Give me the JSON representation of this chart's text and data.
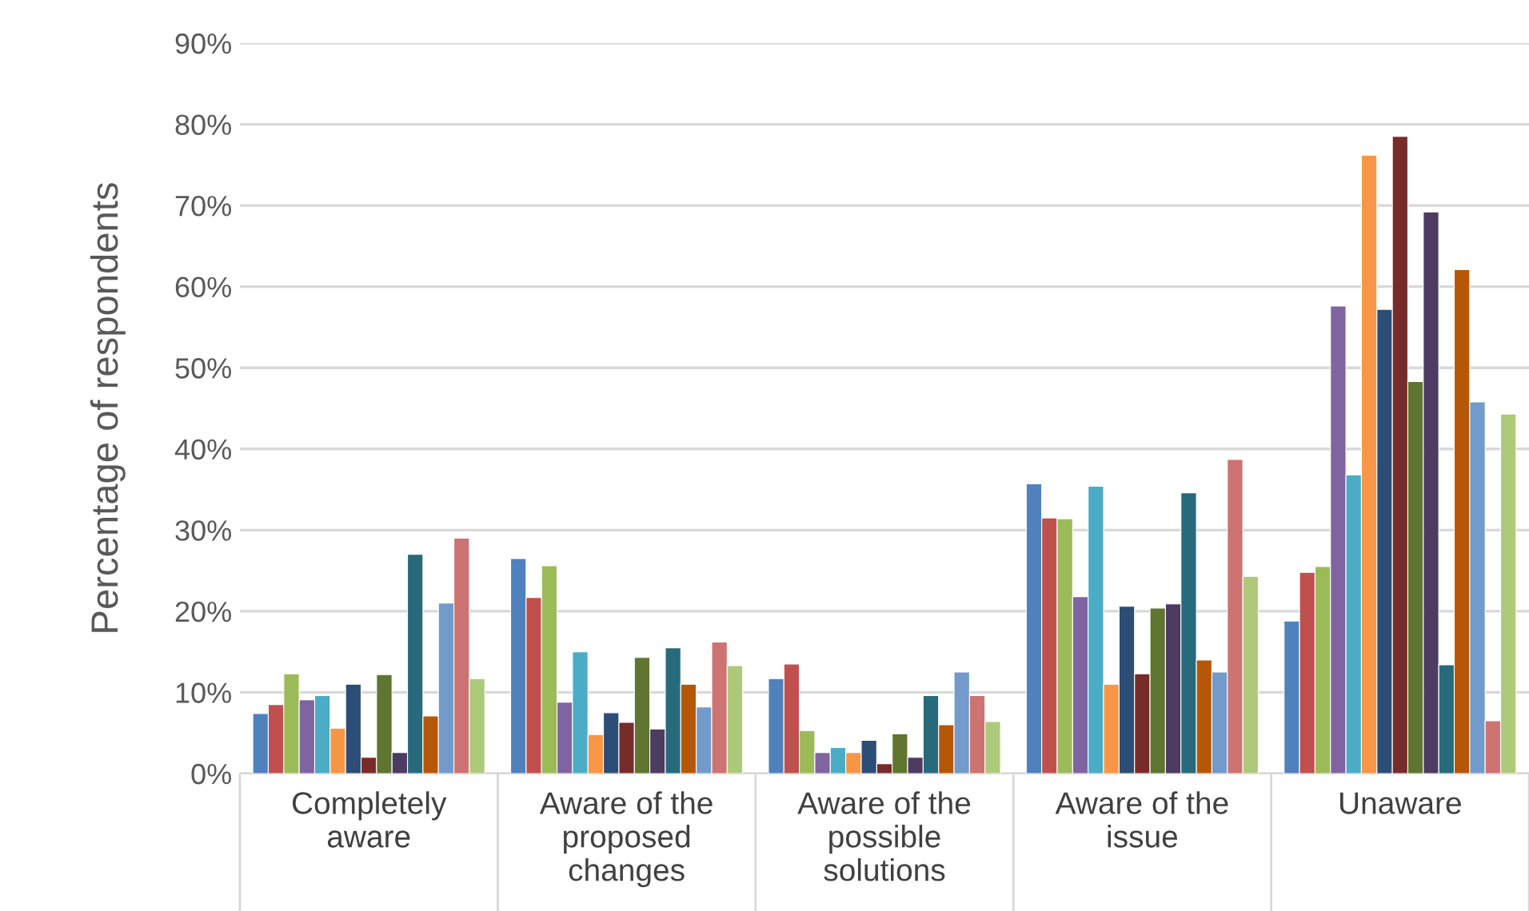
{
  "chart_data": {
    "type": "bar",
    "ylabel": "Percentage of respondents",
    "categories": [
      "Completely\naware",
      "Aware of the\nproposed\nchanges",
      "Aware of the\npossible\nsolutions",
      "Aware of the\nissue",
      "Unaware"
    ],
    "series": [
      {
        "color": "#4f81bd",
        "values": [
          7.4,
          26.5,
          11.7,
          35.7,
          18.8
        ]
      },
      {
        "color": "#c0504d",
        "values": [
          8.5,
          21.7,
          13.5,
          31.5,
          24.8
        ]
      },
      {
        "color": "#9bbb59",
        "values": [
          12.3,
          25.6,
          5.3,
          31.4,
          25.5
        ]
      },
      {
        "color": "#8064a2",
        "values": [
          9.1,
          8.8,
          2.6,
          21.8,
          57.6
        ]
      },
      {
        "color": "#4bacc6",
        "values": [
          9.6,
          15,
          3.2,
          35.4,
          36.8
        ]
      },
      {
        "color": "#f79646",
        "values": [
          5.6,
          4.8,
          2.6,
          11,
          76.2
        ]
      },
      {
        "color": "#2c4d75",
        "values": [
          11,
          7.5,
          4.1,
          20.6,
          57.2
        ]
      },
      {
        "color": "#772c2a",
        "values": [
          2,
          6.3,
          1.2,
          12.3,
          78.5
        ]
      },
      {
        "color": "#5f7530",
        "values": [
          12.2,
          14.3,
          4.9,
          20.4,
          48.3
        ]
      },
      {
        "color": "#4d3b62",
        "values": [
          2.6,
          5.5,
          2,
          20.9,
          69.2
        ]
      },
      {
        "color": "#276a7c",
        "values": [
          27,
          15.5,
          9.6,
          34.6,
          13.4
        ]
      },
      {
        "color": "#b65708",
        "values": [
          7.1,
          11,
          6,
          14,
          62.1
        ]
      },
      {
        "color": "#729aca",
        "values": [
          21,
          8.2,
          12.5,
          12.5,
          45.8
        ]
      },
      {
        "color": "#cd7371",
        "values": [
          29,
          16.2,
          9.6,
          38.7,
          6.5
        ]
      },
      {
        "color": "#afc97a",
        "values": [
          11.7,
          13.3,
          6.4,
          24.3,
          44.3
        ]
      }
    ],
    "ylim": [
      0,
      90
    ],
    "yticks": [
      {
        "value": 0,
        "label": "0%"
      },
      {
        "value": 10,
        "label": "10%"
      },
      {
        "value": 20,
        "label": "20%"
      },
      {
        "value": 30,
        "label": "30%"
      },
      {
        "value": 40,
        "label": "40%"
      },
      {
        "value": 50,
        "label": "50%"
      },
      {
        "value": 60,
        "label": "60%"
      },
      {
        "value": 70,
        "label": "70%"
      },
      {
        "value": 80,
        "label": "80%"
      },
      {
        "value": 90,
        "label": "90%"
      }
    ],
    "grid": "y",
    "legend": false
  }
}
